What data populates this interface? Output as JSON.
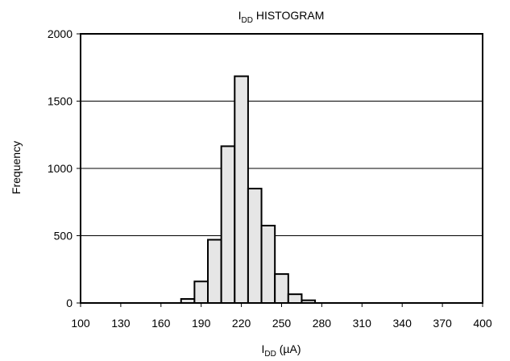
{
  "chart_data": {
    "type": "bar",
    "title": {
      "main": "I",
      "sub": "DD",
      "rest": " HISTOGRAM"
    },
    "xlabel": {
      "main": "I",
      "sub": "DD",
      "rest": " (µA)"
    },
    "ylabel": "Frequency",
    "xlim": [
      100,
      400
    ],
    "ylim": [
      0,
      2000
    ],
    "xticks": [
      "100",
      "130",
      "160",
      "190",
      "220",
      "250",
      "280",
      "310",
      "340",
      "370",
      "400"
    ],
    "yticks": [
      "0",
      "500",
      "1000",
      "1500",
      "2000"
    ],
    "grid": "horizontal",
    "bin_width": 10,
    "bins": [
      {
        "x": 180,
        "value": 30
      },
      {
        "x": 190,
        "value": 160
      },
      {
        "x": 200,
        "value": 470
      },
      {
        "x": 210,
        "value": 1165
      },
      {
        "x": 220,
        "value": 1685
      },
      {
        "x": 230,
        "value": 850
      },
      {
        "x": 240,
        "value": 575
      },
      {
        "x": 250,
        "value": 215
      },
      {
        "x": 260,
        "value": 65
      },
      {
        "x": 270,
        "value": 20
      }
    ],
    "colors": {
      "bar_fill": "#e6e6e6",
      "bar_stroke": "#000000",
      "grid": "#000000"
    }
  }
}
